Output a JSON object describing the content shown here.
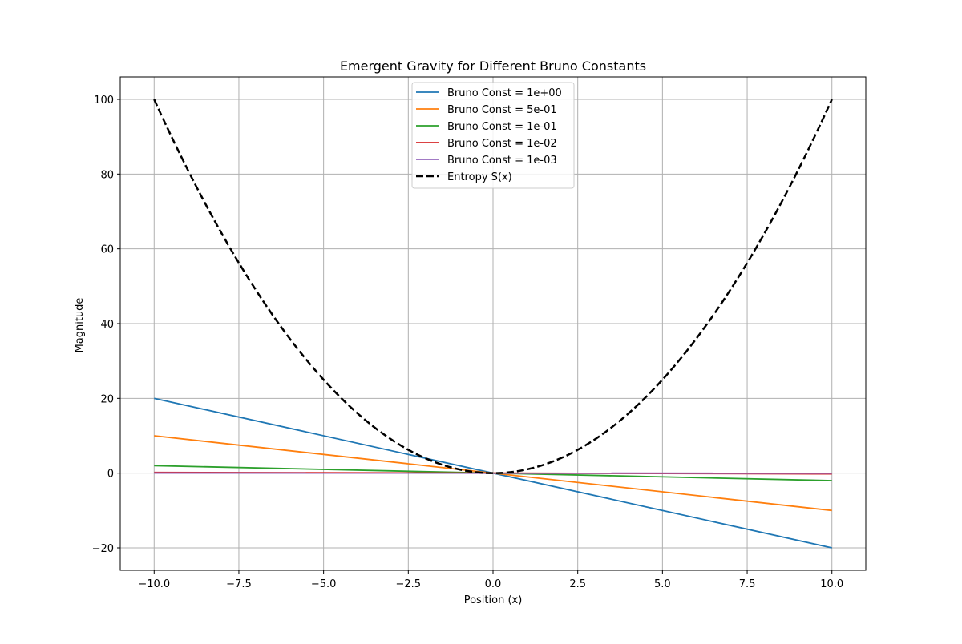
{
  "chart_data": {
    "type": "line",
    "title": "Emergent Gravity for Different Bruno Constants",
    "xlabel": "Position (x)",
    "ylabel": "Magnitude",
    "xlim": [
      -11,
      11
    ],
    "ylim": [
      -26,
      106
    ],
    "x_ticks": [
      -10,
      -7.5,
      -5,
      -2.5,
      0,
      2.5,
      5,
      7.5,
      10
    ],
    "x_tick_labels": [
      "−10.0",
      "−7.5",
      "−5.0",
      "−2.5",
      "0.0",
      "2.5",
      "5.0",
      "7.5",
      "10.0"
    ],
    "y_ticks": [
      -20,
      0,
      20,
      40,
      60,
      80,
      100
    ],
    "y_tick_labels": [
      "−20",
      "0",
      "20",
      "40",
      "60",
      "80",
      "100"
    ],
    "grid": true,
    "legend_position": "top-center",
    "x_domain": [
      -10,
      10
    ],
    "series": [
      {
        "name": "Bruno Const = 1e+00",
        "color": "#1f77b4",
        "style": "solid",
        "function": "linear",
        "slope": -2,
        "points": [
          [
            -10,
            20
          ],
          [
            10,
            -20
          ]
        ]
      },
      {
        "name": "Bruno Const = 5e-01",
        "color": "#ff7f0e",
        "style": "solid",
        "function": "linear",
        "slope": -1,
        "points": [
          [
            -10,
            10
          ],
          [
            10,
            -10
          ]
        ]
      },
      {
        "name": "Bruno Const = 1e-01",
        "color": "#2ca02c",
        "style": "solid",
        "function": "linear",
        "slope": -0.2,
        "points": [
          [
            -10,
            2
          ],
          [
            10,
            -2
          ]
        ]
      },
      {
        "name": "Bruno Const = 1e-02",
        "color": "#d62728",
        "style": "solid",
        "function": "linear",
        "slope": -0.02,
        "points": [
          [
            -10,
            0.2
          ],
          [
            10,
            -0.2
          ]
        ]
      },
      {
        "name": "Bruno Const = 1e-03",
        "color": "#9467bd",
        "style": "solid",
        "function": "linear",
        "slope": -0.002,
        "points": [
          [
            -10,
            0.02
          ],
          [
            10,
            -0.02
          ]
        ]
      },
      {
        "name": "Entropy S(x)",
        "color": "#000000",
        "style": "dashed",
        "function": "x^2",
        "points": [
          [
            -10,
            100
          ],
          [
            -5,
            25
          ],
          [
            0,
            0
          ],
          [
            5,
            25
          ],
          [
            10,
            100
          ]
        ]
      }
    ]
  }
}
